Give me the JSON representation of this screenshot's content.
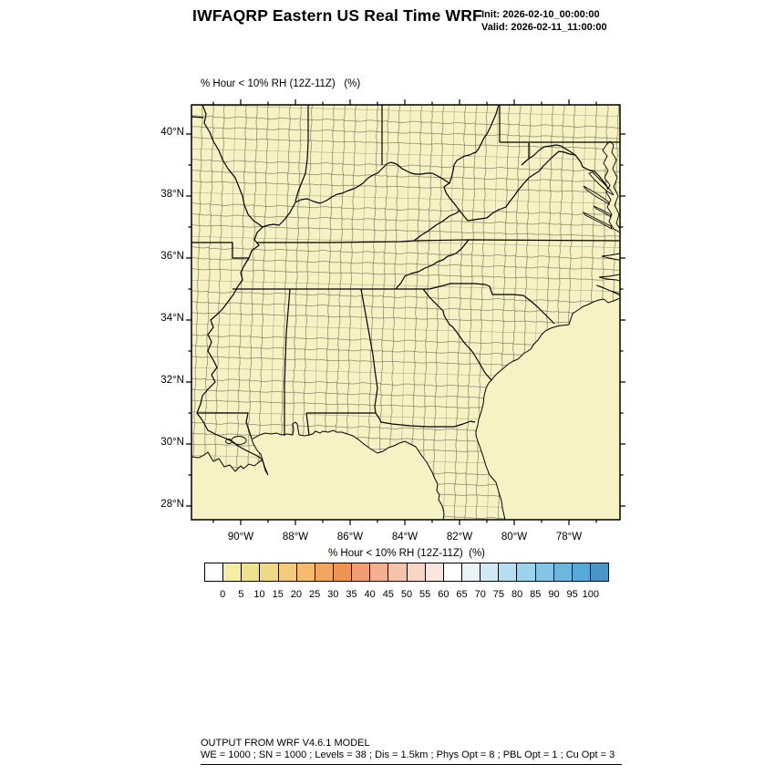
{
  "header": {
    "title": "IWFAQRP Eastern US Real Time WRF",
    "init_label": "Init: 2026-02-10_00:00:00",
    "valid_label": "Valid: 2026-02-11_11:00:00"
  },
  "map": {
    "field_label": "% Hour < 10% RH (12Z-11Z)   (%)",
    "lat_ticks": [
      "40°N",
      "38°N",
      "36°N",
      "34°N",
      "32°N",
      "30°N",
      "28°N"
    ],
    "lon_ticks": [
      "90°W",
      "88°W",
      "86°W",
      "84°W",
      "82°W",
      "80°W",
      "78°W"
    ],
    "land_color": "#f6f2c4",
    "border_color": "#000000",
    "county_line_color": "#55533f"
  },
  "colorbar": {
    "label": "% Hour < 10% RH (12Z-11Z)  (%)",
    "tick_labels": [
      "0",
      "5",
      "10",
      "15",
      "20",
      "25",
      "30",
      "35",
      "40",
      "45",
      "50",
      "55",
      "60",
      "65",
      "70",
      "75",
      "80",
      "85",
      "90",
      "95",
      "100"
    ],
    "segment_colors": [
      "#ffffff",
      "#f4eea4",
      "#eee28d",
      "#eed987",
      "#f3cb7c",
      "#f4ba6d",
      "#f2a75e",
      "#ee9351",
      "#ee9e72",
      "#f2b090",
      "#f5c3ab",
      "#f8d5c5",
      "#fbe6dd",
      "#ffffff",
      "#e8f4f9",
      "#cfeaf5",
      "#b5dff1",
      "#9cd3ec",
      "#82c5e6",
      "#6bb7e0",
      "#56a9d8",
      "#4a95c5"
    ]
  },
  "footer": {
    "line1": "OUTPUT FROM WRF V4.6.1 MODEL",
    "line2": "WE = 1000 ; SN = 1000 ; Levels = 38 ; Dis = 1.5km ; Phys Opt = 8 ; PBL Opt = 1 ; Cu Opt = 3"
  }
}
